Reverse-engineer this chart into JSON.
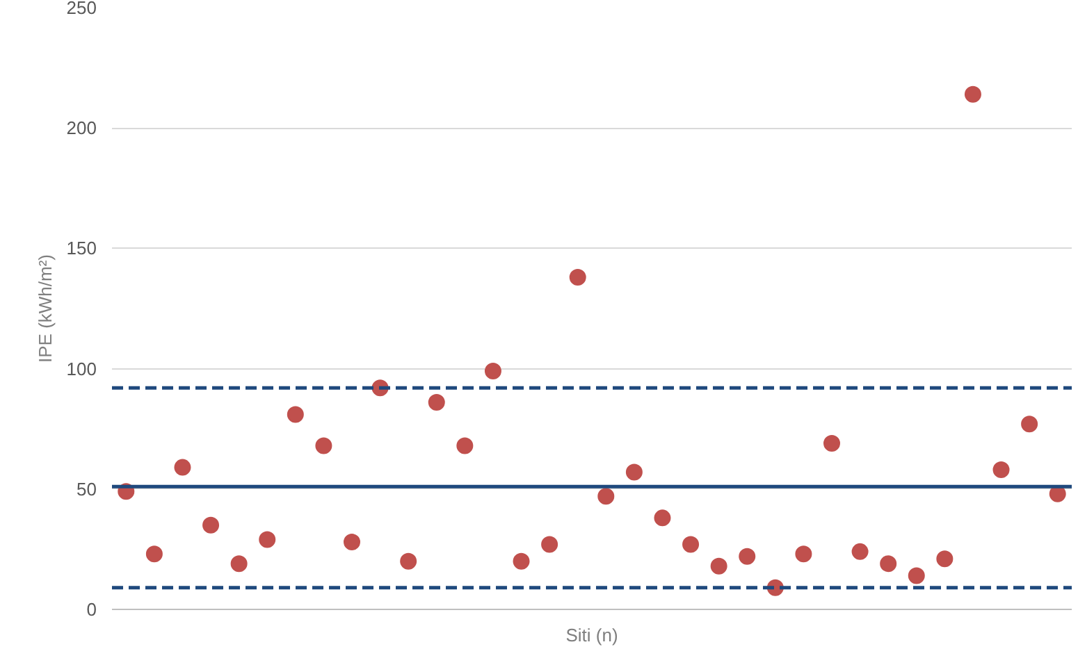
{
  "chart_data": {
    "type": "scatter",
    "xlabel": "Siti (n)",
    "ylabel": "IPE (kWh/m²)",
    "categories": [
      null,
      null,
      null,
      null,
      null,
      null,
      null,
      null,
      null,
      null,
      null,
      null,
      null,
      null,
      null,
      null,
      null,
      null,
      null,
      null,
      null,
      null,
      null,
      null,
      null,
      null,
      null,
      null,
      null,
      null,
      null,
      null,
      null,
      null
    ],
    "series": [
      {
        "color": "#c0504d",
        "values": [
          49,
          23,
          59,
          35,
          19,
          29,
          81,
          68,
          28,
          92,
          20,
          86,
          68,
          99,
          20,
          27,
          138,
          47,
          57,
          38,
          27,
          18,
          22,
          9,
          23,
          69,
          24,
          19,
          14,
          21,
          214,
          58,
          77,
          48
        ]
      }
    ],
    "ylim": [
      0,
      250
    ],
    "yticks": [
      0,
      50,
      100,
      150,
      200,
      250
    ],
    "grid": "y",
    "marker": "circle",
    "tick_labels": "y",
    "ref_lines": [
      {
        "axis": "y",
        "value": 51,
        "color": "#1f497d",
        "line_style": "solid"
      },
      {
        "axis": "y",
        "value": 92,
        "color": "#1f497d",
        "line_style": "dashed"
      },
      {
        "axis": "y",
        "value": 9,
        "color": "#1f497d",
        "line_style": "dashed"
      }
    ]
  }
}
